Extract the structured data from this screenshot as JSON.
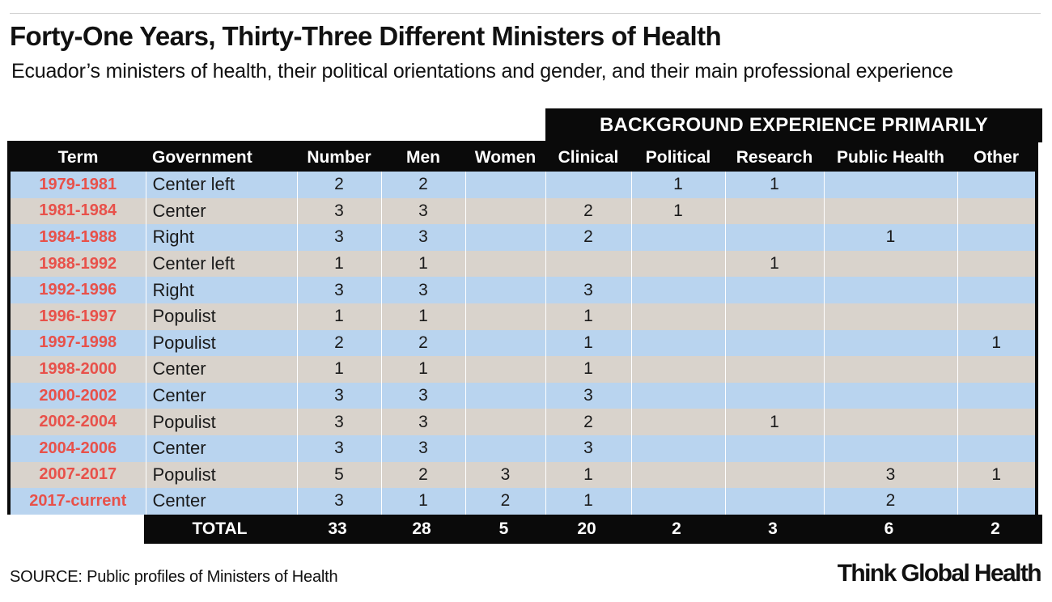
{
  "title": "Forty-One Years, Thirty-Three Different Ministers of Health",
  "subtitle": "Ecuador’s ministers of health, their political orientations and gender, and their main professional experience",
  "group_header": "BACKGROUND EXPERIENCE PRIMARILY",
  "source": "SOURCE: Public profiles of Ministers of Health",
  "brand": "Think Global Health",
  "colors": {
    "term_text": "#e8514a",
    "row_blue": "#b9d4ef",
    "row_tan": "#d9d3cc",
    "header_bg": "#0a0a0a"
  },
  "chart_data": {
    "type": "table",
    "columns": [
      "Term",
      "Government",
      "Number",
      "Men",
      "Women",
      "Clinical",
      "Political",
      "Research",
      "Public Health",
      "Other"
    ],
    "rows": [
      [
        "1979-1981",
        "Center left",
        "2",
        "2",
        "",
        "",
        "1",
        "1",
        "",
        ""
      ],
      [
        "1981-1984",
        "Center",
        "3",
        "3",
        "",
        "2",
        "1",
        "",
        "",
        ""
      ],
      [
        "1984-1988",
        "Right",
        "3",
        "3",
        "",
        "2",
        "",
        "",
        "1",
        ""
      ],
      [
        "1988-1992",
        "Center left",
        "1",
        "1",
        "",
        "",
        "",
        "1",
        "",
        ""
      ],
      [
        "1992-1996",
        "Right",
        "3",
        "3",
        "",
        "3",
        "",
        "",
        "",
        ""
      ],
      [
        "1996-1997",
        "Populist",
        "1",
        "1",
        "",
        "1",
        "",
        "",
        "",
        ""
      ],
      [
        "1997-1998",
        "Populist",
        "2",
        "2",
        "",
        "1",
        "",
        "",
        "",
        "1"
      ],
      [
        "1998-2000",
        "Center",
        "1",
        "1",
        "",
        "1",
        "",
        "",
        "",
        ""
      ],
      [
        "2000-2002",
        "Center",
        "3",
        "3",
        "",
        "3",
        "",
        "",
        "",
        ""
      ],
      [
        "2002-2004",
        "Populist",
        "3",
        "3",
        "",
        "2",
        "",
        "1",
        "",
        ""
      ],
      [
        "2004-2006",
        "Center",
        "3",
        "3",
        "",
        "3",
        "",
        "",
        "",
        ""
      ],
      [
        "2007-2017",
        "Populist",
        "5",
        "2",
        "3",
        "1",
        "",
        "",
        "3",
        "1"
      ],
      [
        "2017-current",
        "Center",
        "3",
        "1",
        "2",
        "1",
        "",
        "",
        "2",
        ""
      ]
    ],
    "total": {
      "label": "TOTAL",
      "values": [
        "33",
        "28",
        "5",
        "20",
        "2",
        "3",
        "6",
        "2"
      ]
    }
  }
}
